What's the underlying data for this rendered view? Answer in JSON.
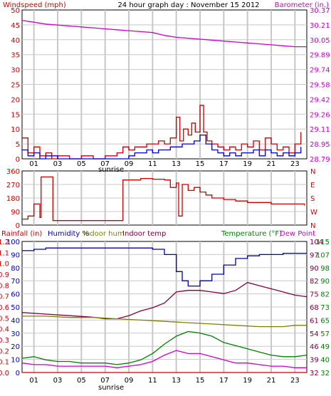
{
  "chart_data": [
    {
      "type": "line",
      "title": "24 hour graph day : November 15 2012",
      "ylabel": "Windspeed (mph)",
      "y2label": "Barometer (in.)",
      "ylim": [
        0,
        50
      ],
      "y2lim": [
        28.79,
        30.37
      ],
      "x_ticks": [
        "01",
        "03",
        "05",
        "07",
        "09",
        "11",
        "13",
        "15",
        "17",
        "19",
        "21",
        "23"
      ],
      "x_note": "sunrise",
      "y_ticks": [
        "0",
        "5",
        "10",
        "15",
        "20",
        "25",
        "30",
        "35",
        "40",
        "45",
        "50"
      ],
      "y2_ticks": [
        "28.79",
        "28.95",
        "29.11",
        "29.26",
        "29.42",
        "29.58",
        "29.74",
        "29.89",
        "30.05",
        "30.21",
        "30.37"
      ],
      "series": [
        {
          "name": "Barometer (in.)",
          "axis": "right",
          "color": "#cc00cc",
          "x": [
            0,
            1,
            2,
            3,
            4,
            5,
            6,
            7,
            8,
            9,
            10,
            11,
            12,
            13,
            14,
            15,
            16,
            17,
            18,
            19,
            20,
            21,
            22,
            23,
            24
          ],
          "y": [
            30.26,
            30.24,
            30.22,
            30.21,
            30.2,
            30.19,
            30.18,
            30.17,
            30.16,
            30.15,
            30.14,
            30.13,
            30.1,
            30.08,
            30.07,
            30.06,
            30.05,
            30.04,
            30.03,
            30.02,
            30.01,
            30.0,
            29.99,
            29.98,
            29.98
          ]
        },
        {
          "name": "Wind gust",
          "axis": "left",
          "color": "#cc0000",
          "x": [
            0,
            0.5,
            1,
            1.5,
            2,
            2.5,
            3,
            4,
            5,
            6,
            7,
            8,
            8.5,
            9,
            9.5,
            10,
            10.5,
            11,
            11.5,
            12,
            12.5,
            13,
            13.3,
            13.6,
            14,
            14.3,
            14.6,
            15,
            15.3,
            15.6,
            16,
            16.5,
            17,
            17.5,
            18,
            18.5,
            19,
            19.5,
            20,
            20.5,
            21,
            21.5,
            22,
            22.5,
            23,
            23.5
          ],
          "y": [
            7,
            2,
            4,
            1,
            2,
            0,
            1,
            0,
            1,
            0,
            1,
            2,
            4,
            3,
            4,
            4,
            5,
            5,
            6,
            5,
            7,
            14,
            6,
            10,
            8,
            12,
            9,
            18,
            9,
            6,
            5,
            4,
            3,
            4,
            3,
            5,
            4,
            6,
            3,
            7,
            5,
            3,
            4,
            2,
            5,
            9
          ]
        },
        {
          "name": "Wind speed",
          "axis": "left",
          "color": "#0000cc",
          "x": [
            0,
            0.5,
            1,
            1.5,
            2,
            3,
            4,
            5,
            6,
            7,
            8,
            9,
            9.5,
            10,
            10.5,
            11,
            11.5,
            12,
            12.5,
            13,
            13.5,
            14,
            14.5,
            15,
            15.5,
            16,
            16.5,
            17,
            17.5,
            18,
            18.5,
            19,
            19.5,
            20,
            20.5,
            21,
            21.5,
            22,
            22.5,
            23,
            23.5
          ],
          "y": [
            3,
            1,
            2,
            0,
            1,
            0,
            0,
            0,
            0,
            0,
            0,
            1,
            2,
            2,
            3,
            2,
            3,
            3,
            4,
            4,
            5,
            5,
            6,
            8,
            5,
            3,
            2,
            1,
            2,
            1,
            2,
            2,
            3,
            1,
            3,
            2,
            1,
            2,
            1,
            2,
            4
          ]
        }
      ]
    },
    {
      "type": "line",
      "ylabel": "",
      "y2label": "",
      "ylim": [
        0,
        360
      ],
      "y_ticks": [
        "0",
        "90",
        "180",
        "270",
        "360"
      ],
      "y2_ticks": [
        "N",
        "W",
        "S",
        "E",
        "N"
      ],
      "series": [
        {
          "name": "Wind direction",
          "axis": "left",
          "color": "#cc0000",
          "x": [
            0,
            0.5,
            1,
            1.5,
            1.6,
            2.5,
            2.6,
            3,
            4,
            5,
            6,
            7,
            8,
            8.5,
            9,
            10,
            11,
            12,
            12.5,
            13,
            13.2,
            13.5,
            14,
            14.5,
            15,
            15.5,
            16,
            17,
            18,
            19,
            20,
            21,
            22,
            23,
            23.8
          ],
          "y": [
            40,
            60,
            140,
            50,
            320,
            320,
            30,
            30,
            30,
            30,
            30,
            30,
            30,
            300,
            300,
            310,
            305,
            300,
            250,
            280,
            60,
            270,
            230,
            250,
            220,
            200,
            180,
            170,
            160,
            150,
            150,
            140,
            140,
            140,
            130
          ]
        }
      ]
    },
    {
      "type": "line",
      "ylabel": "Rainfall (in)",
      "ylabel2": "Humidity %",
      "ylabel3": "Indoor hum",
      "ylabel4": "Indoor temp",
      "y2label": "Temperature (°F)",
      "y2label2": "Dew Point",
      "x_ticks": [
        "01",
        "03",
        "05",
        "07",
        "09",
        "11",
        "13",
        "15",
        "17",
        "19",
        "21",
        "23"
      ],
      "x_note": "sunrise",
      "rain_ticks": [
        "0.0",
        "0.1",
        "0.2",
        "0.3",
        "0.4",
        "0.5",
        "0.6",
        "0.7",
        "0.8",
        "0.9",
        "1.0",
        "1.1",
        "1.2"
      ],
      "hum_ticks": [
        "0",
        "10",
        "20",
        "30",
        "40",
        "50",
        "60",
        "70",
        "80",
        "90",
        "100"
      ],
      "temp_ticks_a": [
        "32",
        "39",
        "46",
        "54",
        "61",
        "68",
        "75",
        "82",
        "90",
        "97",
        "104"
      ],
      "temp_ticks_b": [
        "32",
        "40",
        "49",
        "57",
        "65",
        "73",
        "82",
        "90",
        "98",
        "107",
        "115"
      ],
      "hum_lim": [
        0,
        100
      ],
      "temp_lim": [
        32,
        115
      ],
      "series": [
        {
          "name": "Humidity %",
          "axis": "hum",
          "color": "#0000aa",
          "x": [
            0,
            1,
            2,
            3,
            4,
            5,
            6,
            7,
            8,
            9,
            10,
            11,
            12,
            13,
            13.5,
            14,
            15,
            16,
            17,
            18,
            19,
            20,
            21,
            22,
            23,
            24
          ],
          "y": [
            93,
            94,
            95,
            95,
            95,
            95,
            95,
            95,
            95,
            95,
            95,
            94,
            90,
            77,
            70,
            66,
            70,
            75,
            82,
            87,
            89,
            90,
            90,
            91,
            91,
            91
          ]
        },
        {
          "name": "Indoor temp",
          "axis": "temp",
          "color": "#800040",
          "x": [
            0,
            2,
            4,
            6,
            7,
            8,
            9,
            10,
            11,
            12,
            13,
            14,
            15,
            16,
            17,
            18,
            19,
            20,
            21,
            22,
            23,
            24
          ],
          "y": [
            70,
            69,
            68,
            67,
            66,
            66,
            68,
            71,
            73,
            76,
            83,
            84,
            84,
            83,
            82,
            84,
            89,
            87,
            85,
            83,
            81,
            80
          ]
        },
        {
          "name": "Indoor hum",
          "axis": "hum",
          "color": "#808000",
          "x": [
            0,
            2,
            4,
            6,
            8,
            10,
            12,
            14,
            16,
            18,
            20,
            22,
            23,
            24
          ],
          "y": [
            43,
            43,
            42,
            42,
            41,
            40,
            39,
            38,
            37,
            36,
            35,
            35,
            36,
            36
          ]
        },
        {
          "name": "Temperature (°F)",
          "axis": "temp",
          "color": "#008000",
          "x": [
            0,
            1,
            2,
            3,
            4,
            5,
            6,
            7,
            8,
            9,
            10,
            11,
            12,
            13,
            14,
            15,
            16,
            17,
            18,
            19,
            20,
            21,
            22,
            23,
            24
          ],
          "y": [
            41,
            42,
            40,
            39,
            39,
            38,
            38,
            38,
            37,
            38,
            40,
            44,
            50,
            55,
            58,
            57,
            55,
            51,
            49,
            47,
            45,
            43,
            42,
            42,
            43
          ]
        },
        {
          "name": "Dew Point",
          "axis": "temp",
          "color": "#cc00cc",
          "x": [
            0,
            1,
            2,
            3,
            4,
            5,
            6,
            7,
            8,
            9,
            10,
            11,
            12,
            13,
            14,
            15,
            16,
            17,
            18,
            19,
            20,
            21,
            22,
            23,
            24
          ],
          "y": [
            38,
            37,
            37,
            36,
            36,
            36,
            36,
            36,
            35,
            36,
            37,
            39,
            43,
            46,
            44,
            44,
            42,
            40,
            38,
            38,
            37,
            36,
            36,
            35,
            35
          ]
        },
        {
          "name": "Rainfall (in)",
          "axis": "rain",
          "color": "#cc0000",
          "x": [
            0,
            24
          ],
          "y": [
            0,
            0
          ]
        }
      ]
    }
  ]
}
